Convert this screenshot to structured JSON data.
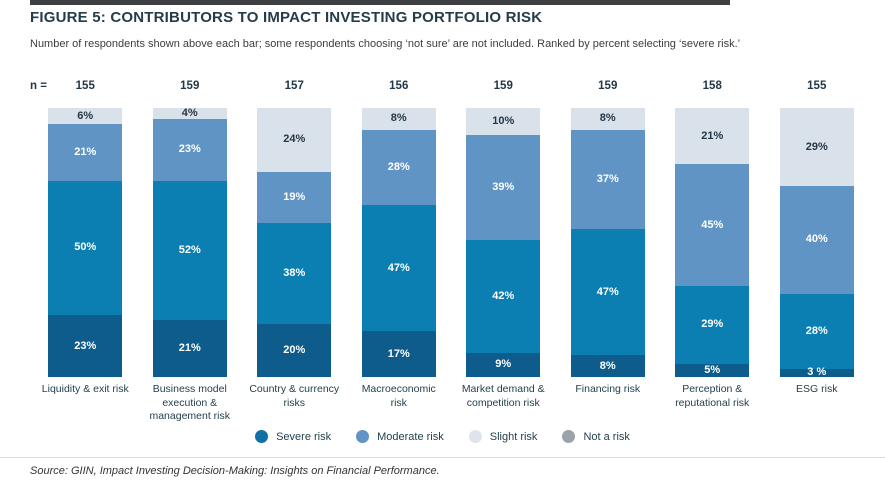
{
  "chart_data": {
    "type": "bar",
    "stacked": true,
    "orientation": "vertical",
    "units": "percent",
    "ylim": [
      0,
      100
    ],
    "grid": false,
    "legend_position": "bottom",
    "title": "FIGURE 5: CONTRIBUTORS TO IMPACT INVESTING PORTFOLIO RISK",
    "note": "Number of respondents shown above each bar; some respondents choosing ‘not sure’ are not included. Ranked by percent selecting ‘severe risk.’",
    "n_label": "n =",
    "n": [
      155,
      159,
      157,
      156,
      159,
      159,
      158,
      155
    ],
    "categories": [
      "Liquidity & exit risk",
      "Business model execution & management risk",
      "Country & currency risks",
      "Macroeconomic risk",
      "Market demand & competition risk",
      "Financing risk",
      "Perception & reputational risk",
      "ESG risk"
    ],
    "series": [
      {
        "name": "Severe risk",
        "color": "#0d5c8c",
        "label_color": "#ffffff",
        "values": [
          23,
          21,
          20,
          17,
          9,
          8,
          5,
          3
        ],
        "labels": [
          "23%",
          "21%",
          "20%",
          "17%",
          "9%",
          "8%",
          "5%",
          "3 %"
        ]
      },
      {
        "name": "Moderate risk",
        "color": "#0b7eb2",
        "label_color": "#ffffff",
        "values": [
          50,
          52,
          38,
          47,
          42,
          47,
          29,
          28
        ],
        "labels": [
          "50%",
          "52%",
          "38%",
          "47%",
          "42%",
          "47%",
          "29%",
          "28%"
        ]
      },
      {
        "name": "Slight risk",
        "color": "#6094c4",
        "label_color": "#ffffff",
        "values": [
          21,
          23,
          19,
          28,
          39,
          37,
          45,
          40
        ],
        "labels": [
          "21%",
          "23%",
          "19%",
          "28%",
          "39%",
          "37%",
          "45%",
          "40%"
        ]
      },
      {
        "name": "Not a risk",
        "color": "#d9e1ea",
        "label_color": "#243746",
        "values": [
          6,
          4,
          24,
          8,
          10,
          8,
          21,
          29
        ],
        "labels": [
          "6%",
          "4%",
          "24%",
          "8%",
          "10%",
          "8%",
          "21%",
          "29%"
        ]
      }
    ],
    "legend": [
      {
        "label": "Severe risk",
        "color": "#1171a6"
      },
      {
        "label": "Moderate risk",
        "color": "#6094c4"
      },
      {
        "label": "Slight risk",
        "color": "#dde4ec"
      },
      {
        "label": "Not a risk",
        "color": "#9ba2a9"
      }
    ],
    "source": "Source: GIIN, Impact Investing Decision-Making: Insights on Financial Performance."
  }
}
